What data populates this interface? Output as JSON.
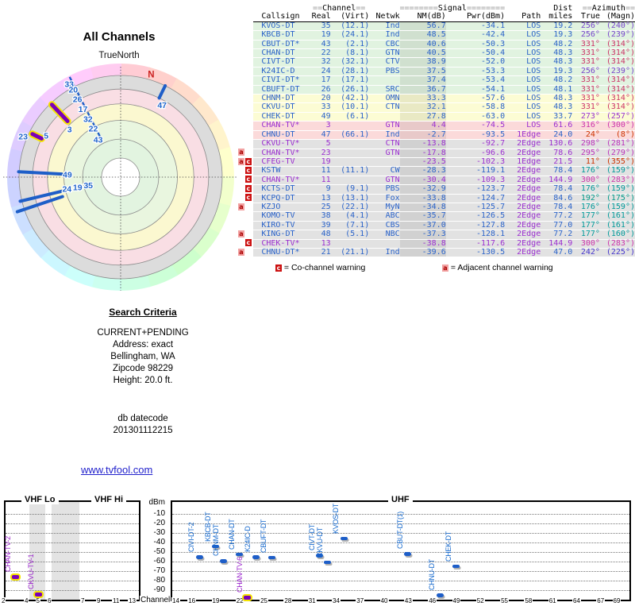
{
  "radar": {
    "title": "All Channels",
    "true_north_label": "TrueNorth",
    "north_label": "N",
    "ring_colors": [
      "#dcdcdc",
      "#f9dee4",
      "#fbf8d0",
      "#e9f6df",
      "#e2f4e0",
      "#ffffff"
    ],
    "ring_radii": [
      0.895,
      0.775,
      0.645,
      0.5,
      0.335,
      0.168
    ],
    "lines": [
      {
        "az": 26,
        "r0": 0.775,
        "r1": 0.895,
        "style": "blue"
      },
      {
        "az": 316.5,
        "r0": 0.68,
        "r1": 0.88,
        "style": "analog"
      },
      {
        "az": 296,
        "r0": 0.775,
        "r1": 0.865,
        "style": "analog"
      },
      {
        "az": 273,
        "r0": 0.52,
        "r1": 0.9,
        "style": "blue"
      },
      {
        "az": 256.5,
        "r0": 0.53,
        "r1": 0.91,
        "style": "blue"
      },
      {
        "az": 251.5,
        "r0": 0.54,
        "r1": 0.96,
        "style": "blue"
      }
    ],
    "tick_marks": [
      {
        "az": 333,
        "r": 0.955
      },
      {
        "az": 333,
        "r": 0.9
      },
      {
        "az": 333,
        "r": 0.805
      },
      {
        "az": 333,
        "r": 0.705
      },
      {
        "az": 333,
        "r": 0.605
      },
      {
        "az": 333,
        "r": 0.51
      },
      {
        "az": 333,
        "r": 0.405
      }
    ],
    "labels": [
      {
        "t": "47",
        "az": 30,
        "r": 0.73
      },
      {
        "t": "33",
        "az": 331,
        "r": 0.935
      },
      {
        "t": "20",
        "az": 331.5,
        "r": 0.875
      },
      {
        "t": "26",
        "az": 331,
        "r": 0.785
      },
      {
        "t": "17",
        "az": 331,
        "r": 0.685
      },
      {
        "t": "32",
        "az": 330.5,
        "r": 0.585
      },
      {
        "t": "22",
        "az": 330.5,
        "r": 0.49
      },
      {
        "t": "43",
        "az": 329,
        "r": 0.385
      },
      {
        "t": "3",
        "az": 313,
        "r": 0.615
      },
      {
        "t": "23",
        "az": 292.5,
        "r": 0.93
      },
      {
        "t": "5",
        "az": 299,
        "r": 0.75
      },
      {
        "t": "49",
        "az": 272.5,
        "r": 0.47
      },
      {
        "t": "24",
        "az": 257.5,
        "r": 0.485
      },
      {
        "t": "19",
        "az": 256.5,
        "r": 0.39
      },
      {
        "t": "35",
        "az": 255.5,
        "r": 0.295
      }
    ]
  },
  "table": {
    "header1": {
      "ch_eq_l": "==",
      "ch_word": "Channel",
      "ch_eq_r": "==",
      "sig_eq_l": "========",
      "sig_word": "Signal",
      "sig_eq_r": "========",
      "dist_word": "Dist",
      "az_eq_l": "==",
      "az_word": "Azimuth",
      "az_eq_r": "=="
    },
    "header2": {
      "callsign": "Callsign",
      "real": "Real",
      "virt": "(Virt)",
      "netwk": "Netwk",
      "nm": "NM(dB)",
      "pwr": "Pwr(dBm)",
      "path": "Path",
      "miles": "miles",
      "true": "True",
      "magn": "(Magn)"
    },
    "rows": [
      {
        "wa": 0,
        "wc": 0,
        "callsign": "KVOS-DT",
        "real": "35",
        "virt": "(12.1)",
        "netwk": "Ind",
        "nm": "56.7",
        "pwr": "-34.1",
        "path": "LOS",
        "miles": "19.2",
        "true": "256°",
        "magn": "(240°)",
        "color": "blue",
        "bg": "green",
        "azc": "#7744cc"
      },
      {
        "wa": 0,
        "wc": 0,
        "callsign": "KBCB-DT",
        "real": "19",
        "virt": "(24.1)",
        "netwk": "Ind",
        "nm": "48.5",
        "pwr": "-42.4",
        "path": "LOS",
        "miles": "19.3",
        "true": "256°",
        "magn": "(239°)",
        "color": "blue",
        "bg": "green",
        "azc": "#7744cc"
      },
      {
        "wa": 0,
        "wc": 0,
        "callsign": "CBUT-DT*",
        "real": "43",
        "virt": "(2.1)",
        "netwk": "CBC",
        "nm": "40.6",
        "pwr": "-50.3",
        "path": "LOS",
        "miles": "48.2",
        "true": "331°",
        "magn": "(314°)",
        "color": "blue",
        "bg": "green",
        "azc": "#cc3366"
      },
      {
        "wa": 0,
        "wc": 0,
        "callsign": "CHAN-DT",
        "real": "22",
        "virt": "(8.1)",
        "netwk": "GTN",
        "nm": "40.5",
        "pwr": "-50.4",
        "path": "LOS",
        "miles": "48.3",
        "true": "331°",
        "magn": "(314°)",
        "color": "blue",
        "bg": "green",
        "azc": "#cc3366"
      },
      {
        "wa": 0,
        "wc": 0,
        "callsign": "CIVT-DT",
        "real": "32",
        "virt": "(32.1)",
        "netwk": "CTV",
        "nm": "38.9",
        "pwr": "-52.0",
        "path": "LOS",
        "miles": "48.3",
        "true": "331°",
        "magn": "(314°)",
        "color": "blue",
        "bg": "green",
        "azc": "#cc3366"
      },
      {
        "wa": 0,
        "wc": 0,
        "callsign": "K24IC-D",
        "real": "24",
        "virt": "(28.1)",
        "netwk": "PBS",
        "nm": "37.5",
        "pwr": "-53.3",
        "path": "LOS",
        "miles": "19.3",
        "true": "256°",
        "magn": "(239°)",
        "color": "blue",
        "bg": "green",
        "azc": "#7744cc"
      },
      {
        "wa": 0,
        "wc": 0,
        "callsign": "CIVI-DT*",
        "real": "17",
        "virt": "(17.1)",
        "netwk": "",
        "nm": "37.4",
        "pwr": "-53.4",
        "path": "LOS",
        "miles": "48.2",
        "true": "331°",
        "magn": "(314°)",
        "color": "blue",
        "bg": "green",
        "azc": "#cc3366"
      },
      {
        "wa": 0,
        "wc": 0,
        "callsign": "CBUFT-DT",
        "real": "26",
        "virt": "(26.1)",
        "netwk": "SRC",
        "nm": "36.7",
        "pwr": "-54.1",
        "path": "LOS",
        "miles": "48.1",
        "true": "331°",
        "magn": "(314°)",
        "color": "blue",
        "bg": "green",
        "azc": "#cc3366"
      },
      {
        "wa": 0,
        "wc": 0,
        "callsign": "CHNM-DT",
        "real": "20",
        "virt": "(42.1)",
        "netwk": "OMN",
        "nm": "33.3",
        "pwr": "-57.6",
        "path": "LOS",
        "miles": "48.3",
        "true": "331°",
        "magn": "(314°)",
        "color": "blue",
        "bg": "yellow",
        "azc": "#cc3366"
      },
      {
        "wa": 0,
        "wc": 0,
        "callsign": "CKVU-DT",
        "real": "33",
        "virt": "(10.1)",
        "netwk": "CTN",
        "nm": "32.1",
        "pwr": "-58.8",
        "path": "LOS",
        "miles": "48.3",
        "true": "331°",
        "magn": "(314°)",
        "color": "blue",
        "bg": "yellow",
        "azc": "#cc3366"
      },
      {
        "wa": 0,
        "wc": 0,
        "callsign": "CHEK-DT",
        "real": "49",
        "virt": "(6.1)",
        "netwk": "",
        "nm": "27.8",
        "pwr": "-63.0",
        "path": "LOS",
        "miles": "33.7",
        "true": "273°",
        "magn": "(257°)",
        "color": "blue",
        "bg": "yellow",
        "azc": "#9933cc"
      },
      {
        "wa": 0,
        "wc": 0,
        "callsign": "CHAN-TV*",
        "real": "3",
        "virt": "",
        "netwk": "GTN",
        "nm": "4.4",
        "pwr": "-74.5",
        "path": "LOS",
        "miles": "61.6",
        "true": "316°",
        "magn": "(300°)",
        "color": "purple",
        "bg": "pink",
        "azc": "#cc33aa"
      },
      {
        "wa": 0,
        "wc": 0,
        "callsign": "CHNU-DT",
        "real": "47",
        "virt": "(66.1)",
        "netwk": "Ind",
        "nm": "-2.7",
        "pwr": "-93.5",
        "path": "1Edge",
        "miles": "24.0",
        "true": "24°",
        "magn": "(8°)",
        "color": "blue",
        "bg": "pink",
        "azc": "#cc3300"
      },
      {
        "wa": 0,
        "wc": 0,
        "callsign": "CKVU-TV*",
        "real": "5",
        "virt": "",
        "netwk": "CTN",
        "nm": "-13.8",
        "pwr": "-92.7",
        "path": "2Edge",
        "miles": "130.6",
        "true": "298°",
        "magn": "(281°)",
        "color": "purple",
        "bg": "gray",
        "azc": "#bb33bb"
      },
      {
        "wa": 1,
        "wc": 0,
        "callsign": "CHAN-TV*",
        "real": "23",
        "virt": "",
        "netwk": "GTN",
        "nm": "-17.8",
        "pwr": "-96.6",
        "path": "2Edge",
        "miles": "78.6",
        "true": "295°",
        "magn": "(279°)",
        "color": "purple",
        "bg": "gray",
        "azc": "#bb33bb"
      },
      {
        "wa": 1,
        "wc": 1,
        "callsign": "CFEG-TV",
        "real": "19",
        "virt": "",
        "netwk": "",
        "nm": "-23.5",
        "pwr": "-102.3",
        "path": "1Edge",
        "miles": "21.5",
        "true": "11°",
        "magn": "(355°)",
        "color": "purple",
        "bg": "gray",
        "azc": "#cc3300"
      },
      {
        "wa": 0,
        "wc": 1,
        "callsign": "KSTW",
        "real": "11",
        "virt": "(11.1)",
        "netwk": "CW",
        "nm": "-28.3",
        "pwr": "-119.1",
        "path": "2Edge",
        "miles": "78.4",
        "true": "176°",
        "magn": "(159°)",
        "color": "blue",
        "bg": "gray",
        "azc": "#009999"
      },
      {
        "wa": 0,
        "wc": 1,
        "callsign": "CHAN-TV*",
        "real": "11",
        "virt": "",
        "netwk": "GTN",
        "nm": "-30.4",
        "pwr": "-109.3",
        "path": "2Edge",
        "miles": "144.9",
        "true": "300°",
        "magn": "(283°)",
        "color": "purple",
        "bg": "gray",
        "azc": "#cc33aa"
      },
      {
        "wa": 0,
        "wc": 1,
        "callsign": "KCTS-DT",
        "real": "9",
        "virt": "(9.1)",
        "netwk": "PBS",
        "nm": "-32.9",
        "pwr": "-123.7",
        "path": "2Edge",
        "miles": "78.4",
        "true": "176°",
        "magn": "(159°)",
        "color": "blue",
        "bg": "gray",
        "azc": "#009999"
      },
      {
        "wa": 0,
        "wc": 1,
        "callsign": "KCPQ-DT",
        "real": "13",
        "virt": "(13.1)",
        "netwk": "Fox",
        "nm": "-33.8",
        "pwr": "-124.7",
        "path": "2Edge",
        "miles": "84.6",
        "true": "192°",
        "magn": "(175°)",
        "color": "blue",
        "bg": "gray",
        "azc": "#009988"
      },
      {
        "wa": 1,
        "wc": 0,
        "callsign": "KZJO",
        "real": "25",
        "virt": "(22.1)",
        "netwk": "MyN",
        "nm": "-34.8",
        "pwr": "-125.7",
        "path": "2Edge",
        "miles": "78.4",
        "true": "176°",
        "magn": "(159°)",
        "color": "blue",
        "bg": "gray",
        "azc": "#009999"
      },
      {
        "wa": 0,
        "wc": 0,
        "callsign": "KOMO-TV",
        "real": "38",
        "virt": "(4.1)",
        "netwk": "ABC",
        "nm": "-35.7",
        "pwr": "-126.5",
        "path": "2Edge",
        "miles": "77.2",
        "true": "177°",
        "magn": "(161°)",
        "color": "blue",
        "bg": "gray",
        "azc": "#009999"
      },
      {
        "wa": 0,
        "wc": 0,
        "callsign": "KIRO-TV",
        "real": "39",
        "virt": "(7.1)",
        "netwk": "CBS",
        "nm": "-37.0",
        "pwr": "-127.8",
        "path": "2Edge",
        "miles": "77.0",
        "true": "177°",
        "magn": "(161°)",
        "color": "blue",
        "bg": "gray",
        "azc": "#009999"
      },
      {
        "wa": 1,
        "wc": 0,
        "callsign": "KING-DT",
        "real": "48",
        "virt": "(5.1)",
        "netwk": "NBC",
        "nm": "-37.3",
        "pwr": "-128.1",
        "path": "2Edge",
        "miles": "77.2",
        "true": "177°",
        "magn": "(160°)",
        "color": "blue",
        "bg": "gray",
        "azc": "#009999"
      },
      {
        "wa": 0,
        "wc": 1,
        "callsign": "CHEK-TV*",
        "real": "13",
        "virt": "",
        "netwk": "",
        "nm": "-38.8",
        "pwr": "-117.6",
        "path": "2Edge",
        "miles": "144.9",
        "true": "300°",
        "magn": "(283°)",
        "color": "purple",
        "bg": "gray",
        "azc": "#cc33aa"
      },
      {
        "wa": 1,
        "wc": 0,
        "callsign": "CHNU-DT*",
        "real": "21",
        "virt": "(21.1)",
        "netwk": "Ind",
        "nm": "-39.6",
        "pwr": "-130.5",
        "path": "2Edge",
        "miles": "47.0",
        "true": "242°",
        "magn": "(225°)",
        "color": "blue",
        "bg": "gray",
        "azc": "#4433cc"
      }
    ],
    "legend": {
      "c_letter": "c",
      "c_text": "= Co-channel warning",
      "a_letter": "a",
      "a_text": "= Adjacent channel warning"
    }
  },
  "search_criteria": {
    "title": "Search Criteria",
    "lines": [
      "CURRENT+PENDING",
      "Address: exact",
      "Bellingham, WA",
      "Zipcode 98229",
      "Height: 20.0 ft."
    ],
    "db_label": "db datecode",
    "db_value": "201301112215"
  },
  "link_text": "www.tvfool.com",
  "chart_data": {
    "type": "scatter",
    "ylabel": "dBm",
    "xlabel": "Channel",
    "ylim": [
      -10,
      -90
    ],
    "yticks": [
      -10,
      -20,
      -30,
      -40,
      -50,
      -60,
      -70,
      -80,
      -90
    ],
    "vhf": {
      "band_labels": [
        "VHF Lo",
        "VHF Hi"
      ],
      "xticks": [
        2,
        4,
        5,
        6,
        7,
        9,
        11,
        13
      ],
      "points": [
        {
          "label": "CHAN-TV-2",
          "ch": 3,
          "dbm": -74.5,
          "analog": true
        },
        {
          "label": "CKVU-TV-1",
          "ch": 5,
          "dbm": -92.7,
          "analog": true
        }
      ]
    },
    "uhf": {
      "band_label": "UHF",
      "xticks": [
        14,
        16,
        19,
        22,
        25,
        28,
        31,
        34,
        37,
        40,
        43,
        46,
        49,
        52,
        55,
        58,
        61,
        64,
        67,
        69
      ],
      "points": [
        {
          "label": "CIVI-DT-2",
          "ch": 17,
          "dbm": -53.4,
          "analog": false
        },
        {
          "label": "KBCB-DT",
          "ch": 19,
          "dbm": -42.4,
          "analog": false
        },
        {
          "label": "CHNM-DT",
          "ch": 20,
          "dbm": -57.6,
          "analog": false
        },
        {
          "label": "CHAN-DT",
          "ch": 22,
          "dbm": -50.4,
          "analog": false
        },
        {
          "label": "CHAN-TV-6",
          "ch": 23,
          "dbm": -96.6,
          "analog": true
        },
        {
          "label": "K24IC-D",
          "ch": 24,
          "dbm": -53.3,
          "analog": false
        },
        {
          "label": "CBUFT-DT",
          "ch": 26,
          "dbm": -54.1,
          "analog": false
        },
        {
          "label": "CIVT-DT",
          "ch": 32,
          "dbm": -52.0,
          "analog": false
        },
        {
          "label": "CKVU-DT",
          "ch": 33,
          "dbm": -58.8,
          "analog": false
        },
        {
          "label": "KVOS-DT",
          "ch": 35,
          "dbm": -34.1,
          "analog": false
        },
        {
          "label": "CBUT-DT(1)",
          "ch": 43,
          "dbm": -50.3,
          "analog": false
        },
        {
          "label": "CHNU-DT",
          "ch": 47,
          "dbm": -93.5,
          "analog": false
        },
        {
          "label": "CHEK-DT",
          "ch": 49,
          "dbm": -63.0,
          "analog": false
        }
      ]
    }
  }
}
